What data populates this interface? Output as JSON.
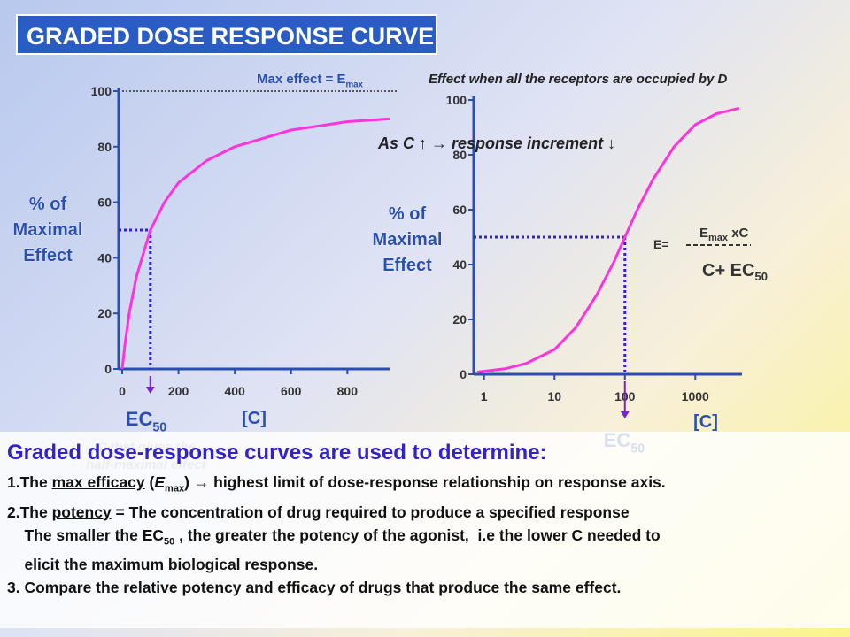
{
  "title": "GRADED DOSE RESPONSE CURVE",
  "chart_data": [
    {
      "type": "line",
      "color": "#ff33dd",
      "y_label": [
        "% of",
        "Maximal",
        "Effect"
      ],
      "x_label": "[C]",
      "annotation": {
        "text": "Max effect = E",
        "sub": "max"
      },
      "ec50": {
        "text": "EC",
        "sub": "50"
      },
      "ec50_note": [
        "C that gives the",
        "half-maximal effect"
      ],
      "x": [
        0,
        10,
        25,
        50,
        100,
        150,
        200,
        300,
        400,
        500,
        600,
        700,
        800,
        950
      ],
      "values": [
        0,
        9,
        20,
        33,
        50,
        60,
        67,
        75,
        80,
        83,
        86,
        87.5,
        89,
        90
      ],
      "xlim": [
        0,
        950
      ],
      "xticks": [
        0,
        200,
        400,
        600,
        800
      ],
      "ylim": [
        0,
        100
      ],
      "yticks": [
        0,
        20,
        40,
        60,
        80,
        100
      ]
    },
    {
      "type": "line",
      "log_x": true,
      "color": "#ff33dd",
      "y_label": [
        "% of",
        "Maximal",
        "Effect"
      ],
      "x_label": "[C]",
      "annotation": "Effect when all the receptors are occupied by D",
      "note": "As C ↑ → response increment ↓",
      "ec50": {
        "text": "EC",
        "sub": "50"
      },
      "formula": {
        "lhs": "E=",
        "num": "E",
        "num_sub": "max",
        "num_rest": " xC",
        "den": "C+ EC",
        "den_sub": "50"
      },
      "x": [
        0.8,
        2,
        4,
        10,
        20,
        40,
        70,
        100,
        150,
        250,
        500,
        1000,
        2000,
        4200
      ],
      "values": [
        0.8,
        2,
        4,
        9,
        17,
        29,
        41,
        50,
        60,
        71,
        83,
        91,
        95,
        97
      ],
      "xlim": [
        0.8,
        4600
      ],
      "xticks": [
        1,
        10,
        100,
        1000
      ],
      "ylim": [
        0,
        100
      ],
      "yticks": [
        0,
        20,
        40,
        60,
        80,
        100
      ]
    }
  ],
  "text_box": {
    "heading": "Graded dose-response curves are used to determine:",
    "lines": [
      [
        {
          "text": "1.The "
        },
        {
          "text": "max efficacy",
          "style": "u"
        },
        {
          "text": " ("
        },
        {
          "text": "E",
          "style": "i"
        },
        {
          "text": "max",
          "style": "sub"
        },
        {
          "text": ") → highest limit of dose-response relationship on response axis."
        }
      ],
      [
        {
          "text": "2.The "
        },
        {
          "text": "potency",
          "style": "u"
        },
        {
          "text": " = The concentration of drug required to produce a specified response"
        }
      ],
      [
        {
          "text": "    The smaller the EC"
        },
        {
          "text": "50",
          "style": "sub"
        },
        {
          "text": " , the greater the potency of the agonist,  i.e the lower C needed to"
        }
      ],
      [
        {
          "text": "    elicit the maximum biological response."
        }
      ],
      [
        {
          "text": "3. Compare the relative potency and efficacy of drugs that produce the same effect."
        }
      ]
    ]
  }
}
